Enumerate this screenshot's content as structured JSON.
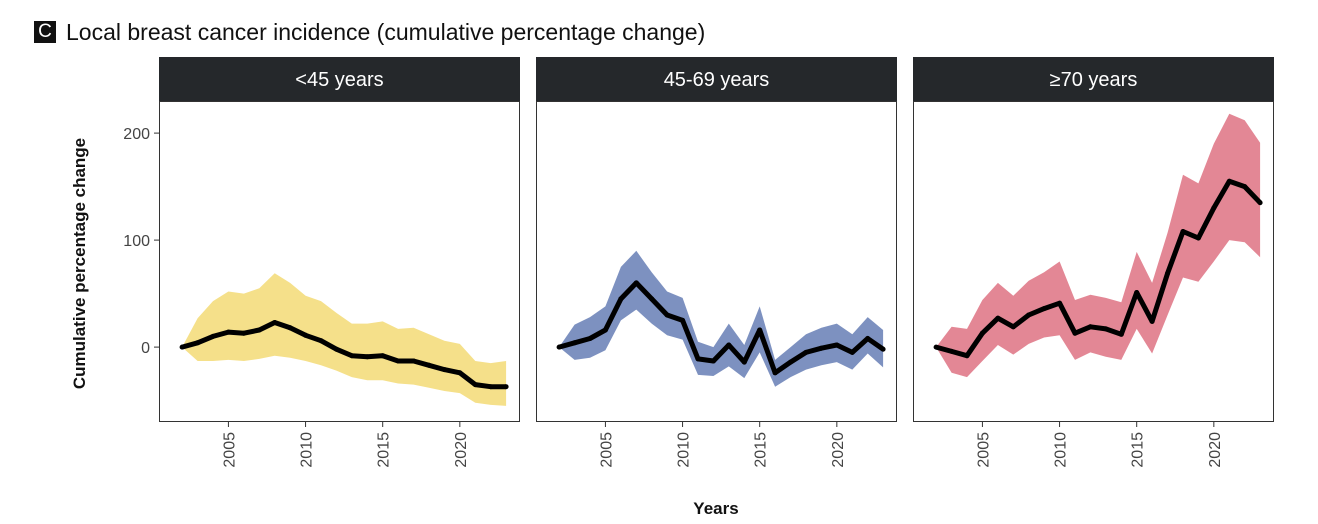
{
  "figure": {
    "panel_letter": "C",
    "title": "Local breast cancer incidence (cumulative percentage change)"
  },
  "chart_data": {
    "type": "line",
    "xlabel": "Years",
    "ylabel": "Cumulative percentage change",
    "xlim": [
      2000.5,
      2023.9
    ],
    "ylim": [
      -70,
      230
    ],
    "x_ticks": [
      2005,
      2010,
      2015,
      2020
    ],
    "y_ticks": [
      0,
      100,
      200
    ],
    "grid": false,
    "x": [
      2002,
      2003,
      2004,
      2005,
      2006,
      2007,
      2008,
      2009,
      2010,
      2011,
      2012,
      2013,
      2014,
      2015,
      2016,
      2017,
      2018,
      2019,
      2020,
      2021,
      2022,
      2023
    ],
    "panels": [
      {
        "strip": "<45 years",
        "band_color": "#f5e08a",
        "line_color": "#000000",
        "values": [
          0,
          4,
          10,
          14,
          13,
          16,
          23,
          18,
          11,
          6,
          -2,
          -8,
          -9,
          -8,
          -13,
          -13,
          -17,
          -21,
          -24,
          -35,
          -37,
          -37
        ],
        "lower": [
          0,
          -13,
          -13,
          -12,
          -13,
          -11,
          -8,
          -10,
          -13,
          -17,
          -22,
          -28,
          -31,
          -31,
          -34,
          -35,
          -38,
          -41,
          -43,
          -52,
          -54,
          -55
        ],
        "upper": [
          0,
          27,
          43,
          52,
          50,
          55,
          69,
          60,
          48,
          43,
          32,
          22,
          22,
          24,
          17,
          18,
          12,
          6,
          3,
          -13,
          -15,
          -13
        ]
      },
      {
        "strip": "45-69 years",
        "band_color": "#7d91c0",
        "line_color": "#000000",
        "values": [
          0,
          4,
          8,
          16,
          45,
          60,
          45,
          30,
          25,
          -11,
          -13,
          2,
          -14,
          16,
          -24,
          -14,
          -5,
          -1,
          2,
          -5,
          8,
          -2
        ],
        "lower": [
          0,
          -12,
          -10,
          -3,
          25,
          35,
          22,
          11,
          7,
          -26,
          -27,
          -18,
          -29,
          -5,
          -37,
          -28,
          -21,
          -17,
          -14,
          -21,
          -6,
          -19
        ],
        "upper": [
          0,
          21,
          28,
          38,
          75,
          90,
          70,
          52,
          46,
          5,
          0,
          22,
          2,
          38,
          -12,
          0,
          12,
          18,
          22,
          12,
          28,
          16
        ]
      },
      {
        "strip": "≥70 years",
        "band_color": "#e38795",
        "line_color": "#000000",
        "values": [
          0,
          -4,
          -8,
          13,
          27,
          19,
          30,
          36,
          41,
          13,
          19,
          17,
          12,
          51,
          24,
          69,
          108,
          102,
          130,
          155,
          150,
          135
        ],
        "lower": [
          0,
          -24,
          -28,
          -13,
          2,
          -7,
          3,
          9,
          11,
          -12,
          -5,
          -9,
          -12,
          17,
          -6,
          30,
          65,
          61,
          80,
          100,
          98,
          84
        ],
        "upper": [
          0,
          19,
          17,
          44,
          60,
          48,
          62,
          70,
          80,
          44,
          49,
          46,
          42,
          89,
          60,
          107,
          161,
          153,
          190,
          218,
          212,
          191
        ]
      }
    ]
  }
}
